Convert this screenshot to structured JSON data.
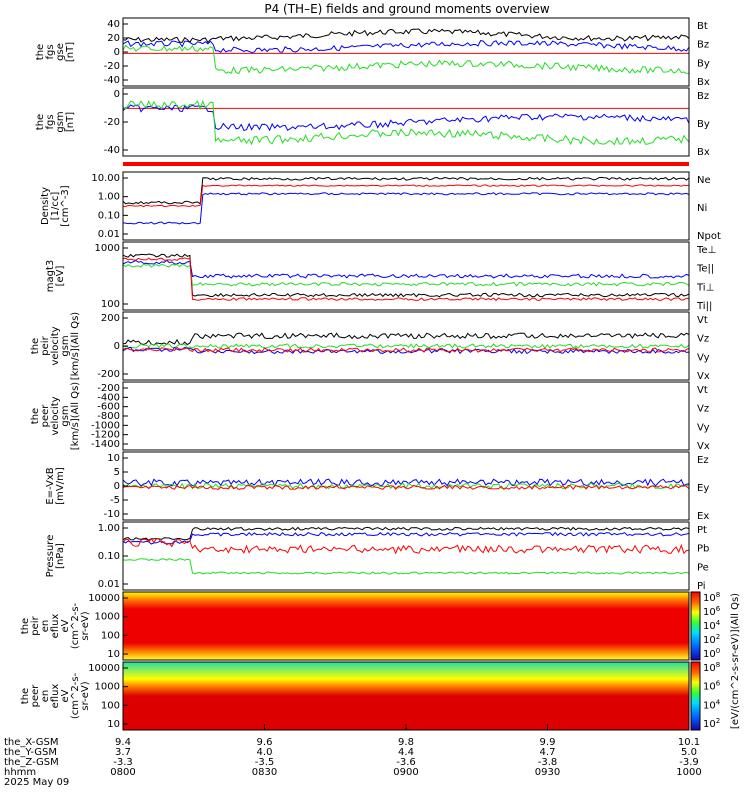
{
  "title": "P4 (TH–E) fields and ground moments overview",
  "colors": {
    "black": "#000000",
    "red": "#ff0000",
    "green": "#22dd22",
    "blue": "#0000ff"
  },
  "time": {
    "ticks": [
      {
        "r1": "9.4",
        "x": "3.7",
        "y": "-3.3",
        "t": "0800"
      },
      {
        "r1": "9.6",
        "x": "4.0",
        "y": "-3.5",
        "t": "0830"
      },
      {
        "r1": "9.8",
        "x": "4.4",
        "y": "-3.6",
        "t": "0900"
      },
      {
        "r1": "9.9",
        "x": "4.7",
        "y": "-3.8",
        "t": "0930"
      },
      {
        "r1": "10.1",
        "x": "5.0",
        "y": "-3.9",
        "t": "1000"
      }
    ],
    "row_labels": [
      "the_X-GSM",
      "the_Y-GSM",
      "the_Z-GSM",
      "hhmm",
      "2025 May 09"
    ]
  },
  "chart_data": [
    {
      "type": "line",
      "panel": "fgs_gse",
      "ylabel": [
        "the",
        "fgs",
        "gse",
        "[nT]"
      ],
      "yticks": [
        "40",
        "20",
        "0",
        "-20",
        "-40"
      ],
      "legend": [
        {
          "name": "Bt",
          "color": "black"
        },
        {
          "name": "Bz",
          "color": "red"
        },
        {
          "name": "By",
          "color": "green"
        },
        {
          "name": "Bx",
          "color": "blue"
        }
      ]
    },
    {
      "type": "line",
      "panel": "fgs_gsm",
      "ylabel": [
        "the",
        "fgs",
        "gsm",
        "[nT]"
      ],
      "yticks": [
        "0",
        "-20",
        "-40"
      ],
      "legend": [
        {
          "name": "Bz",
          "color": "red"
        },
        {
          "name": "By",
          "color": "green"
        },
        {
          "name": "Bx",
          "color": "blue"
        }
      ]
    },
    {
      "type": "line",
      "panel": "density",
      "scale": "log",
      "ylabel": [
        "Density",
        "[1/cc]",
        "[cm^-3]"
      ],
      "yticks": [
        "10.00",
        "1.00",
        "0.10",
        "0.01"
      ],
      "legend": [
        {
          "name": "Ne",
          "color": "red"
        },
        {
          "name": "Ni",
          "color": "black"
        },
        {
          "name": "Npot",
          "color": "blue"
        }
      ]
    },
    {
      "type": "line",
      "panel": "temperature",
      "scale": "log",
      "ylabel": [
        "magt3",
        "[eV]"
      ],
      "yticks": [
        "1000",
        "100"
      ],
      "legend": [
        {
          "name": "Te⊥",
          "color": "red"
        },
        {
          "name": "Te||",
          "color": "black"
        },
        {
          "name": "Ti⊥",
          "color": "blue"
        },
        {
          "name": "Ti||",
          "color": "green"
        }
      ]
    },
    {
      "type": "line",
      "panel": "peir_velocity",
      "ylabel": [
        "the",
        "peir",
        "velocity",
        "gsm",
        "[km/s](All Qs)"
      ],
      "yticks": [
        "200",
        "0",
        "-200"
      ],
      "legend": [
        {
          "name": "Vt",
          "color": "black"
        },
        {
          "name": "Vz",
          "color": "red"
        },
        {
          "name": "Vy",
          "color": "green"
        },
        {
          "name": "Vx",
          "color": "blue"
        }
      ]
    },
    {
      "type": "line",
      "panel": "peer_velocity",
      "ylabel": [
        "the",
        "peer",
        "velocity",
        "gsm",
        "[km/s](All Qs)"
      ],
      "yticks": [
        "-200",
        "-400",
        "-600",
        "-800",
        "-1000",
        "-1200",
        "-1400"
      ],
      "legend": [
        {
          "name": "Vt",
          "color": "black"
        },
        {
          "name": "Vz",
          "color": "red"
        },
        {
          "name": "Vy",
          "color": "green"
        },
        {
          "name": "Vx",
          "color": "blue"
        }
      ]
    },
    {
      "type": "line",
      "panel": "efield",
      "ylabel": [
        "E=-VxB",
        "[mV/m]"
      ],
      "yticks": [
        "10",
        "5",
        "0",
        "-5",
        "-10"
      ],
      "legend": [
        {
          "name": "Ez",
          "color": "red"
        },
        {
          "name": "Ey",
          "color": "green"
        },
        {
          "name": "Ex",
          "color": "blue"
        }
      ]
    },
    {
      "type": "line",
      "panel": "pressure",
      "scale": "log",
      "ylabel": [
        "Pressure",
        "[nPa]"
      ],
      "yticks": [
        "1.00",
        "0.10",
        "0.01"
      ],
      "legend": [
        {
          "name": "Pt",
          "color": "black"
        },
        {
          "name": "Pb",
          "color": "red"
        },
        {
          "name": "Pe",
          "color": "green"
        },
        {
          "name": "Pi",
          "color": "blue"
        }
      ]
    },
    {
      "type": "heatmap",
      "panel": "peir_eflux",
      "ylabel": [
        "the",
        "peir",
        "en",
        "eflux",
        "eV",
        "(cm^2-s-",
        "sr-eV)"
      ],
      "yticks": [
        "10000",
        "1000",
        "100",
        "10"
      ]
    },
    {
      "type": "heatmap",
      "panel": "peer_eflux",
      "ylabel": [
        "the",
        "peer",
        "en",
        "eflux",
        "eV",
        "(cm^2-s-",
        "sr-eV)"
      ],
      "yticks": [
        "10000",
        "1000",
        "100",
        "10"
      ]
    }
  ],
  "colorbar": {
    "label": "[eV/(cm^2-s-sr-eV)](All Qs)",
    "upper_ticks": [
      "10^8",
      "10^6",
      "10^4",
      "10^2",
      "10^0"
    ],
    "lower_ticks": [
      "10^8",
      "10^6",
      "10^4",
      "10^2"
    ]
  }
}
